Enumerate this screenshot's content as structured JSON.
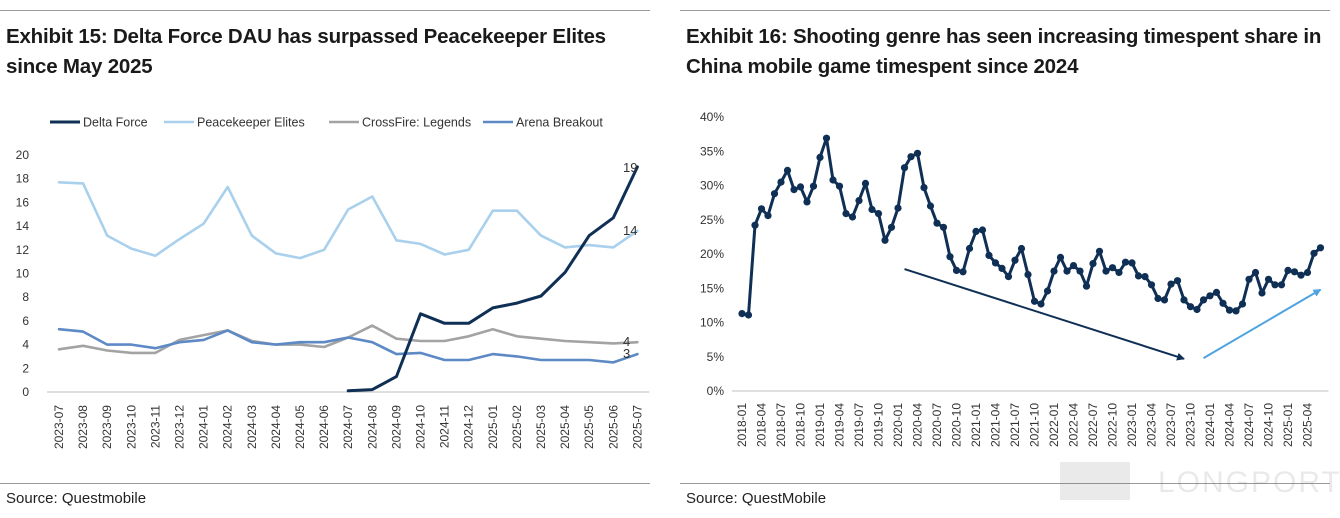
{
  "left": {
    "title": "Exhibit 15: Delta Force DAU has surpassed Peacekeeper Elites since May 2025",
    "source": "Source: Questmobile"
  },
  "right": {
    "title": "Exhibit 16: Shooting genre has seen increasing timespent share in China mobile game timespent since 2024",
    "source": "Source: QuestMobile"
  },
  "watermark": "LONGPORT",
  "chart_data": [
    {
      "type": "line",
      "categories": [
        "2023-07",
        "2023-08",
        "2023-09",
        "2023-10",
        "2023-11",
        "2023-12",
        "2024-01",
        "2024-02",
        "2024-03",
        "2024-04",
        "2024-05",
        "2024-06",
        "2024-07",
        "2024-08",
        "2024-09",
        "2024-10",
        "2024-11",
        "2024-12",
        "2025-01",
        "2025-02",
        "2025-03",
        "2025-04",
        "2025-05",
        "2025-06",
        "2025-07"
      ],
      "yticks": [
        "0",
        "2",
        "4",
        "6",
        "8",
        "10",
        "12",
        "14",
        "16",
        "18",
        "20"
      ],
      "ylim": [
        0,
        20
      ],
      "legend_position": "top",
      "series": [
        {
          "name": "Delta Force",
          "color": "#0f2f55",
          "width": 3,
          "values": [
            null,
            null,
            null,
            null,
            null,
            null,
            null,
            null,
            null,
            null,
            null,
            null,
            0.1,
            0.2,
            1.3,
            6.6,
            5.8,
            5.8,
            7.1,
            7.5,
            8.1,
            10.1,
            13.2,
            14.7,
            19.0
          ],
          "end_label": "19"
        },
        {
          "name": "Peacekeeper Elites",
          "color": "#a9d0ec",
          "width": 2.6,
          "values": [
            17.7,
            17.6,
            13.2,
            12.1,
            11.5,
            12.9,
            14.2,
            17.3,
            13.2,
            11.7,
            11.3,
            12.0,
            15.4,
            16.5,
            12.8,
            12.5,
            11.6,
            12.0,
            15.3,
            15.3,
            13.2,
            12.2,
            12.4,
            12.2,
            13.6
          ],
          "end_label": "14"
        },
        {
          "name": "CrossFire: Legends",
          "color": "#a3a3a3",
          "width": 2.6,
          "values": [
            3.6,
            3.9,
            3.5,
            3.3,
            3.3,
            4.4,
            4.8,
            5.2,
            4.3,
            4.0,
            4.0,
            3.8,
            4.6,
            5.6,
            4.5,
            4.3,
            4.3,
            4.7,
            5.3,
            4.7,
            4.5,
            4.3,
            4.2,
            4.1,
            4.2
          ],
          "end_label": "4"
        },
        {
          "name": "Arena Breakout",
          "color": "#5d89c5",
          "width": 2.6,
          "values": [
            5.3,
            5.1,
            4.0,
            4.0,
            3.7,
            4.2,
            4.4,
            5.2,
            4.2,
            4.0,
            4.2,
            4.2,
            4.6,
            4.2,
            3.2,
            3.3,
            2.7,
            2.7,
            3.2,
            3.0,
            2.7,
            2.7,
            2.7,
            2.5,
            3.2
          ],
          "end_label": "3"
        }
      ]
    },
    {
      "type": "line",
      "ylim": [
        0,
        40
      ],
      "yticks": [
        "0%",
        "5%",
        "10%",
        "15%",
        "20%",
        "25%",
        "30%",
        "35%",
        "40%"
      ],
      "x_start": "2018-01",
      "xtick_labels": [
        "2018-01",
        "2018-04",
        "2018-07",
        "2018-10",
        "2019-01",
        "2019-04",
        "2019-07",
        "2019-10",
        "2020-01",
        "2020-04",
        "2020-07",
        "2020-10",
        "2021-01",
        "2021-04",
        "2021-07",
        "2021-10",
        "2022-01",
        "2022-04",
        "2022-07",
        "2022-10",
        "2023-01",
        "2023-04",
        "2023-07",
        "2023-10",
        "2024-01",
        "2024-04",
        "2024-07",
        "2024-10",
        "2025-01",
        "2025-04"
      ],
      "series": [
        {
          "name": "Shooting genre timespent share",
          "color": "#0f2f55",
          "values": [
            11.3,
            11.1,
            24.2,
            26.6,
            25.6,
            28.8,
            30.5,
            32.2,
            29.4,
            29.8,
            27.6,
            29.9,
            34.1,
            36.9,
            30.8,
            29.9,
            25.9,
            25.4,
            27.8,
            30.3,
            26.5,
            25.9,
            22.0,
            23.9,
            26.7,
            32.6,
            34.2,
            34.7,
            29.7,
            27.0,
            24.5,
            23.9,
            19.6,
            17.6,
            17.4,
            20.8,
            23.3,
            23.5,
            19.8,
            18.7,
            17.9,
            16.7,
            19.1,
            20.8,
            17.0,
            13.1,
            12.7,
            14.6,
            17.5,
            19.5,
            17.5,
            18.3,
            17.5,
            15.3,
            18.6,
            20.4,
            17.5,
            18.0,
            17.3,
            18.8,
            18.7,
            16.8,
            16.7,
            15.5,
            13.5,
            13.3,
            15.6,
            16.1,
            13.3,
            12.3,
            11.9,
            13.3,
            13.9,
            14.4,
            12.8,
            11.8,
            11.7,
            12.7,
            16.3,
            17.3,
            14.3,
            16.3,
            15.5,
            15.5,
            17.6,
            17.4,
            16.9,
            17.3,
            20.1,
            20.9
          ]
        }
      ],
      "annotations": [
        {
          "type": "arrow",
          "description": "downtrend",
          "color": "#0f2f55",
          "from_month": "2020-02",
          "from_value": 17.8,
          "to_month": "2023-09",
          "to_value": 4.7
        },
        {
          "type": "arrow",
          "description": "uptrend",
          "color": "#4fa3e0",
          "from_month": "2023-12",
          "from_value": 4.8,
          "to_month": "2025-06",
          "to_value": 14.8
        }
      ]
    }
  ]
}
